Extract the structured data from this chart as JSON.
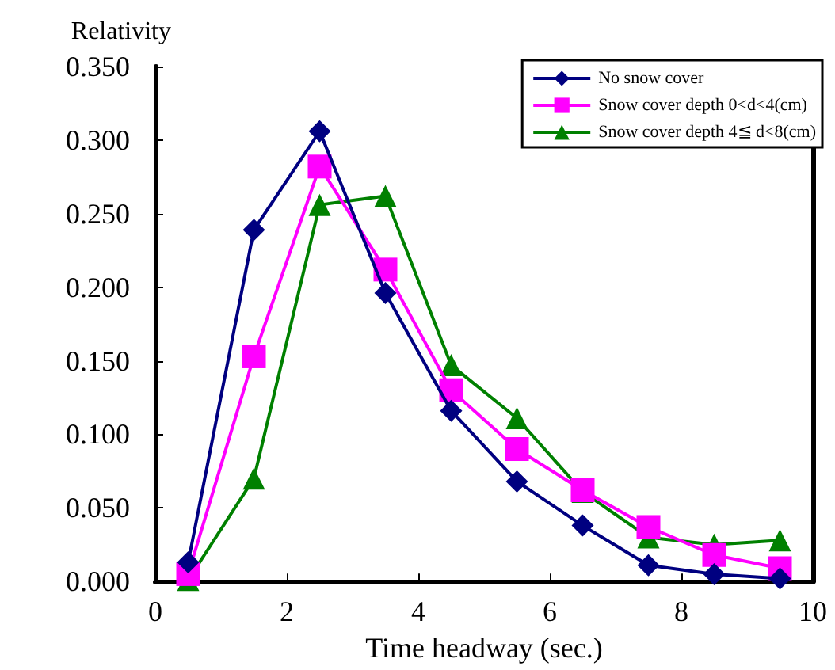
{
  "chart_data": {
    "type": "line",
    "ylabel": "Relativity",
    "xlabel": "Time headway (sec.)",
    "x": [
      0.5,
      1.5,
      2.5,
      3.5,
      4.5,
      5.5,
      6.5,
      7.5,
      8.5,
      9.5
    ],
    "series": [
      {
        "name": "No snow cover",
        "color": "#000080",
        "marker": "diamond",
        "values": [
          0.013,
          0.239,
          0.306,
          0.196,
          0.116,
          0.068,
          0.038,
          0.011,
          0.005,
          0.002
        ]
      },
      {
        "name": "Snow cover depth 0<d<4(cm)",
        "color": "#ff00ff",
        "marker": "square",
        "values": [
          0.005,
          0.153,
          0.282,
          0.212,
          0.13,
          0.09,
          0.062,
          0.037,
          0.018,
          0.009
        ]
      },
      {
        "name": "Snow cover depth 4≦ d<8(cm)",
        "color": "#008000",
        "marker": "triangle",
        "values": [
          0.001,
          0.07,
          0.256,
          0.262,
          0.147,
          0.111,
          0.061,
          0.03,
          0.025,
          0.028
        ]
      }
    ],
    "xlim": [
      0,
      10
    ],
    "xticks": [
      0,
      2,
      4,
      6,
      8,
      10
    ],
    "ylim": [
      0,
      0.35
    ],
    "yticks": [
      {
        "value": 0,
        "label": "0.000"
      },
      {
        "value": 0.05,
        "label": "0.050"
      },
      {
        "value": 0.1,
        "label": "0.100"
      },
      {
        "value": 0.15,
        "label": "0.150"
      },
      {
        "value": 0.2,
        "label": "0.200"
      },
      {
        "value": 0.25,
        "label": "0.250"
      },
      {
        "value": 0.3,
        "label": "0.300"
      },
      {
        "value": 0.35,
        "label": "0.350"
      }
    ],
    "grid": false,
    "legend": "top right"
  }
}
